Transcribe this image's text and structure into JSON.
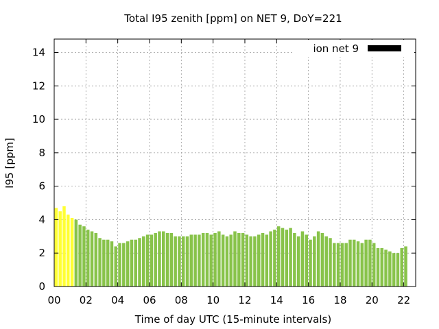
{
  "chart_data": {
    "type": "bar",
    "title": "Total I95 zenith [ppm] on NET 9, DoY=221",
    "xlabel": "Time of day UTC (15-minute intervals)",
    "ylabel": "I95 [ppm]",
    "xlim": [
      0,
      22.75
    ],
    "ylim": [
      0,
      14.8
    ],
    "x_ticks": [
      0,
      2,
      4,
      6,
      8,
      10,
      12,
      14,
      16,
      18,
      20,
      22
    ],
    "x_tick_labels": [
      "00",
      "02",
      "04",
      "06",
      "08",
      "10",
      "12",
      "14",
      "16",
      "18",
      "20",
      "22"
    ],
    "y_ticks": [
      0,
      2,
      4,
      6,
      8,
      10,
      12,
      14
    ],
    "y_tick_labels": [
      "0",
      "2",
      "4",
      "6",
      "8",
      "10",
      "12",
      "14"
    ],
    "grid": true,
    "legend_position": "top-right",
    "interval_hours": 0.25,
    "colors": {
      "high": "#ffff33",
      "normal": "#88c34a",
      "legend": "#000000",
      "grid": "#999999"
    },
    "series": [
      {
        "name": "ion net 9",
        "values": [
          4.7,
          4.5,
          4.8,
          4.3,
          4.1,
          4.0,
          3.7,
          3.6,
          3.4,
          3.3,
          3.2,
          2.9,
          2.8,
          2.8,
          2.7,
          2.4,
          2.6,
          2.6,
          2.7,
          2.8,
          2.8,
          2.9,
          3.0,
          3.1,
          3.1,
          3.2,
          3.3,
          3.3,
          3.2,
          3.2,
          3.0,
          3.0,
          3.0,
          3.0,
          3.1,
          3.1,
          3.1,
          3.2,
          3.2,
          3.1,
          3.2,
          3.3,
          3.1,
          3.0,
          3.1,
          3.3,
          3.2,
          3.2,
          3.1,
          3.0,
          3.0,
          3.1,
          3.2,
          3.1,
          3.3,
          3.4,
          3.6,
          3.5,
          3.4,
          3.5,
          3.2,
          3.0,
          3.3,
          3.1,
          2.8,
          3.0,
          3.3,
          3.2,
          3.0,
          2.9,
          2.6,
          2.6,
          2.6,
          2.6,
          2.8,
          2.8,
          2.7,
          2.6,
          2.8,
          2.8,
          2.6,
          2.3,
          2.3,
          2.2,
          2.1,
          2.0,
          2.0,
          2.3,
          2.4
        ],
        "colors": [
          "high",
          "high",
          "high",
          "high",
          "high",
          "normal",
          "normal",
          "normal",
          "normal",
          "normal",
          "normal",
          "normal",
          "normal",
          "normal",
          "normal",
          "normal",
          "normal",
          "normal",
          "normal",
          "normal",
          "normal",
          "normal",
          "normal",
          "normal",
          "normal",
          "normal",
          "normal",
          "normal",
          "normal",
          "normal",
          "normal",
          "normal",
          "normal",
          "normal",
          "normal",
          "normal",
          "normal",
          "normal",
          "normal",
          "normal",
          "normal",
          "normal",
          "normal",
          "normal",
          "normal",
          "normal",
          "normal",
          "normal",
          "normal",
          "normal",
          "normal",
          "normal",
          "normal",
          "normal",
          "normal",
          "normal",
          "normal",
          "normal",
          "normal",
          "normal",
          "normal",
          "normal",
          "normal",
          "normal",
          "normal",
          "normal",
          "normal",
          "normal",
          "normal",
          "normal",
          "normal",
          "normal",
          "normal",
          "normal",
          "normal",
          "normal",
          "normal",
          "normal",
          "normal",
          "normal",
          "normal",
          "normal",
          "normal",
          "normal",
          "normal",
          "normal",
          "normal",
          "normal",
          "normal"
        ]
      }
    ]
  }
}
